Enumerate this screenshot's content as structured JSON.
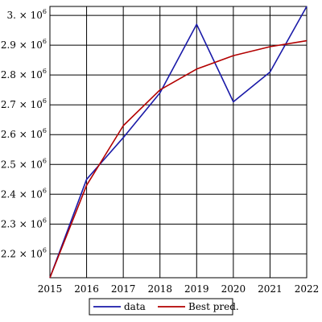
{
  "chart_data": {
    "type": "line",
    "title": "",
    "xlabel": "",
    "ylabel": "",
    "x": [
      2015,
      2016,
      2017,
      2018,
      2019,
      2020,
      2021,
      2022
    ],
    "x_tick_labels": [
      "2015",
      "2016",
      "2017",
      "2018",
      "2019",
      "2020",
      "2021",
      "2022"
    ],
    "y_ticks": [
      2200000,
      2300000,
      2400000,
      2500000,
      2600000,
      2700000,
      2800000,
      2900000,
      3000000
    ],
    "y_tick_labels": [
      {
        "mantissa": "2.2",
        "exp": "6"
      },
      {
        "mantissa": "2.3",
        "exp": "6"
      },
      {
        "mantissa": "2.4",
        "exp": "6"
      },
      {
        "mantissa": "2.5",
        "exp": "6"
      },
      {
        "mantissa": "2.6",
        "exp": "6"
      },
      {
        "mantissa": "2.7",
        "exp": "6"
      },
      {
        "mantissa": "2.8",
        "exp": "6"
      },
      {
        "mantissa": "2.9",
        "exp": "6"
      },
      {
        "mantissa": "3.",
        "exp": "6"
      }
    ],
    "y_tick_times": "× 10",
    "xlim": [
      2015,
      2022
    ],
    "ylim": [
      2120000,
      3030000
    ],
    "grid": true,
    "legend_position": "bottom",
    "series": [
      {
        "name": "data",
        "color": "#1a1aa8",
        "values": [
          2120000,
          2450000,
          2590000,
          2740000,
          2970000,
          2710000,
          2810000,
          3030000
        ]
      },
      {
        "name": "Best pred.",
        "color": "#b30000",
        "values": [
          2120000,
          2430000,
          2630000,
          2750000,
          2820000,
          2865000,
          2895000,
          2915000
        ]
      }
    ]
  }
}
